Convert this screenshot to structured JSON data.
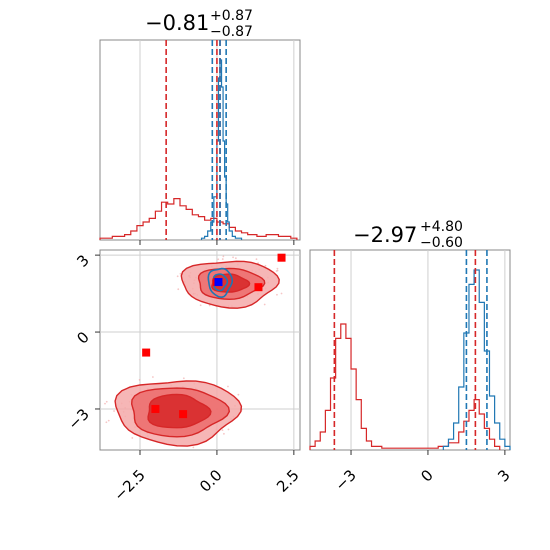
{
  "chart_data": [
    {
      "type": "histogram",
      "panel": "marginal-x",
      "title": {
        "value": "−0.81",
        "plus": "+0.87",
        "minus": "−0.87"
      },
      "xlim": [
        -3.8,
        2.7
      ],
      "grid": true,
      "series": [
        {
          "color": "#d62728",
          "bins": [
            [
              -3.8,
              0.01
            ],
            [
              -3.4,
              0.02
            ],
            [
              -3.0,
              0.03
            ],
            [
              -2.8,
              0.05
            ],
            [
              -2.6,
              0.08
            ],
            [
              -2.4,
              0.1
            ],
            [
              -2.2,
              0.12
            ],
            [
              -2.0,
              0.16
            ],
            [
              -1.8,
              0.21
            ],
            [
              -1.6,
              0.2
            ],
            [
              -1.4,
              0.23
            ],
            [
              -1.2,
              0.19
            ],
            [
              -1.0,
              0.17
            ],
            [
              -0.8,
              0.14
            ],
            [
              -0.6,
              0.13
            ],
            [
              -0.4,
              0.11
            ],
            [
              -0.2,
              0.12
            ],
            [
              0.0,
              0.1
            ],
            [
              0.2,
              0.09
            ],
            [
              0.4,
              0.07
            ],
            [
              0.6,
              0.05
            ],
            [
              0.8,
              0.04
            ],
            [
              1.0,
              0.03
            ],
            [
              1.3,
              0.02
            ],
            [
              1.6,
              0.03
            ],
            [
              2.0,
              0.02
            ],
            [
              2.4,
              0.01
            ]
          ]
        },
        {
          "color": "#1f77b4",
          "bins": [
            [
              -0.5,
              0.01
            ],
            [
              -0.4,
              0.02
            ],
            [
              -0.3,
              0.05
            ],
            [
              -0.2,
              0.1
            ],
            [
              -0.1,
              0.24
            ],
            [
              0.0,
              0.55
            ],
            [
              0.05,
              0.9
            ],
            [
              0.1,
              1.0
            ],
            [
              0.15,
              0.85
            ],
            [
              0.2,
              0.55
            ],
            [
              0.25,
              0.35
            ],
            [
              0.3,
              0.2
            ],
            [
              0.35,
              0.1
            ],
            [
              0.4,
              0.05
            ],
            [
              0.5,
              0.02
            ],
            [
              0.6,
              0.01
            ]
          ]
        }
      ],
      "quantile_lines": [
        {
          "color": "#d62728",
          "x": -1.65
        },
        {
          "color": "#d62728",
          "x": 0.0
        },
        {
          "color": "#d62728",
          "x": 0.1
        },
        {
          "color": "#1f77b4",
          "x": -0.15
        },
        {
          "color": "#1f77b4",
          "x": 0.1
        },
        {
          "color": "#1f77b4",
          "x": 0.3
        }
      ]
    },
    {
      "type": "contour-scatter",
      "panel": "joint",
      "xlim": [
        -3.8,
        2.7
      ],
      "ylim": [
        -4.6,
        3.2
      ],
      "x_ticks": [
        "−2.5",
        "0.0",
        "2.5"
      ],
      "x_tick_values": [
        -2.5,
        0.0,
        2.5
      ],
      "y_ticks": [
        "3",
        "0",
        "−3"
      ],
      "y_tick_values": [
        3,
        0,
        -3
      ],
      "grid": true,
      "clusters": [
        {
          "color": "#d62728",
          "center": [
            0.4,
            1.9
          ],
          "levels": [
            [
              1.55,
              0.9
            ],
            [
              1.05,
              0.6
            ],
            [
              0.6,
              0.35
            ]
          ]
        },
        {
          "color": "#d62728",
          "center": [
            -1.3,
            -3.1
          ],
          "levels": [
            [
              2.0,
              1.25
            ],
            [
              1.55,
              0.95
            ],
            [
              1.0,
              0.65
            ]
          ]
        },
        {
          "color": "#1f77b4",
          "center": [
            0.1,
            1.95
          ],
          "levels": [
            [
              0.38,
              0.55
            ],
            [
              0.22,
              0.32
            ]
          ]
        }
      ],
      "markers": [
        {
          "color": "#ff0000",
          "x": 2.1,
          "y": 2.9
        },
        {
          "color": "#ff0000",
          "x": 1.35,
          "y": 1.75
        },
        {
          "color": "#ff0000",
          "x": -2.3,
          "y": -0.8
        },
        {
          "color": "#ff0000",
          "x": -2.0,
          "y": -3.0
        },
        {
          "color": "#ff0000",
          "x": -1.1,
          "y": -3.2
        },
        {
          "color": "#ff0000",
          "x": 0.0,
          "y": 1.95
        },
        {
          "color": "#0000ff",
          "x": 0.05,
          "y": 1.95
        }
      ]
    },
    {
      "type": "histogram",
      "panel": "marginal-y",
      "title": {
        "value": "−2.97",
        "plus": "+4.80",
        "minus": "−0.60"
      },
      "xlim": [
        -4.6,
        3.2
      ],
      "x_ticks": [
        "−3",
        "0",
        "3"
      ],
      "x_tick_values": [
        -3,
        0,
        3
      ],
      "grid": true,
      "series": [
        {
          "color": "#d62728",
          "bins": [
            [
              -4.6,
              0.02
            ],
            [
              -4.4,
              0.05
            ],
            [
              -4.2,
              0.1
            ],
            [
              -4.0,
              0.22
            ],
            [
              -3.8,
              0.4
            ],
            [
              -3.6,
              0.62
            ],
            [
              -3.4,
              0.7
            ],
            [
              -3.2,
              0.62
            ],
            [
              -3.0,
              0.45
            ],
            [
              -2.8,
              0.28
            ],
            [
              -2.6,
              0.12
            ],
            [
              -2.4,
              0.05
            ],
            [
              -2.2,
              0.02
            ],
            [
              -1.8,
              0.01
            ],
            [
              -1.0,
              0.01
            ],
            [
              0.4,
              0.02
            ],
            [
              0.8,
              0.04
            ],
            [
              1.2,
              0.1
            ],
            [
              1.4,
              0.16
            ],
            [
              1.6,
              0.22
            ],
            [
              1.8,
              0.28
            ],
            [
              2.0,
              0.2
            ],
            [
              2.2,
              0.12
            ],
            [
              2.4,
              0.06
            ],
            [
              2.6,
              0.02
            ]
          ]
        },
        {
          "color": "#1f77b4",
          "bins": [
            [
              0.6,
              0.02
            ],
            [
              0.8,
              0.06
            ],
            [
              1.0,
              0.15
            ],
            [
              1.2,
              0.35
            ],
            [
              1.4,
              0.65
            ],
            [
              1.6,
              0.92
            ],
            [
              1.8,
              1.0
            ],
            [
              2.0,
              0.82
            ],
            [
              2.2,
              0.55
            ],
            [
              2.4,
              0.3
            ],
            [
              2.6,
              0.15
            ],
            [
              2.8,
              0.06
            ],
            [
              3.0,
              0.02
            ]
          ]
        }
      ],
      "quantile_lines": [
        {
          "color": "#d62728",
          "x": -3.65
        },
        {
          "color": "#d62728",
          "x": 1.85
        },
        {
          "color": "#1f77b4",
          "x": 1.5
        },
        {
          "color": "#1f77b4",
          "x": 2.3
        }
      ]
    }
  ]
}
